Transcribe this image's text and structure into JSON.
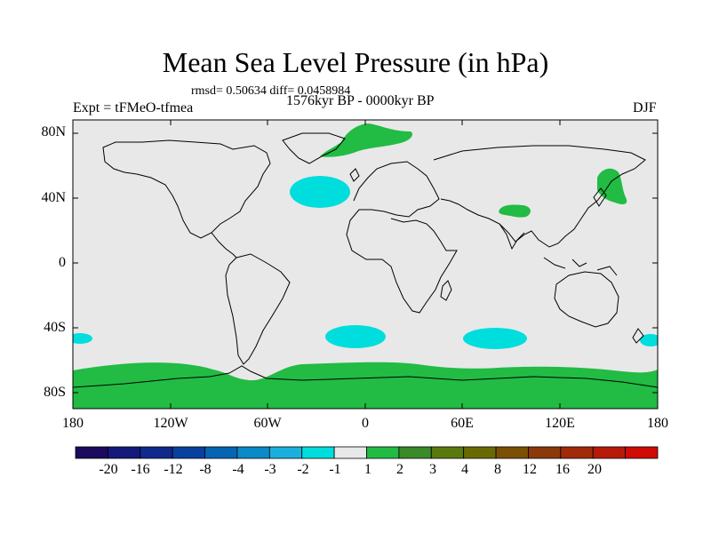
{
  "title": "Mean Sea Level Pressure (in hPa)",
  "subtitle": "rmsd= 0.50634 diff= 0.0458984",
  "left_label": "Expt = tFMeO-tfmea",
  "center_label": "1576kyr BP - 0000kyr BP",
  "right_label": "DJF",
  "colors": {
    "background_field": "#e8e8e8",
    "positive": "#22bb44",
    "negative": "#00dddd",
    "coast": "#000000"
  },
  "map": {
    "lat_labels": [
      "80N",
      "40N",
      "0",
      "40S",
      "80S"
    ],
    "lon_labels": [
      "180",
      "120W",
      "60W",
      "0",
      "60E",
      "120E",
      "180"
    ]
  },
  "colorbar": {
    "colors": [
      "#1b0a5e",
      "#131a7a",
      "#0f2a8c",
      "#08409f",
      "#0565b3",
      "#0a8ac9",
      "#1ab0dd",
      "#00dddd",
      "#e8e8e8",
      "#22bb44",
      "#3a8a2a",
      "#5a7a10",
      "#6a6a05",
      "#7a5005",
      "#8a3a0a",
      "#a02a0a",
      "#b81a0a",
      "#d00a05"
    ],
    "labels": [
      "-20",
      "-16",
      "-12",
      "-8",
      "-4",
      "-3",
      "-2",
      "-1",
      "1",
      "2",
      "3",
      "4",
      "8",
      "12",
      "16",
      "20"
    ]
  }
}
